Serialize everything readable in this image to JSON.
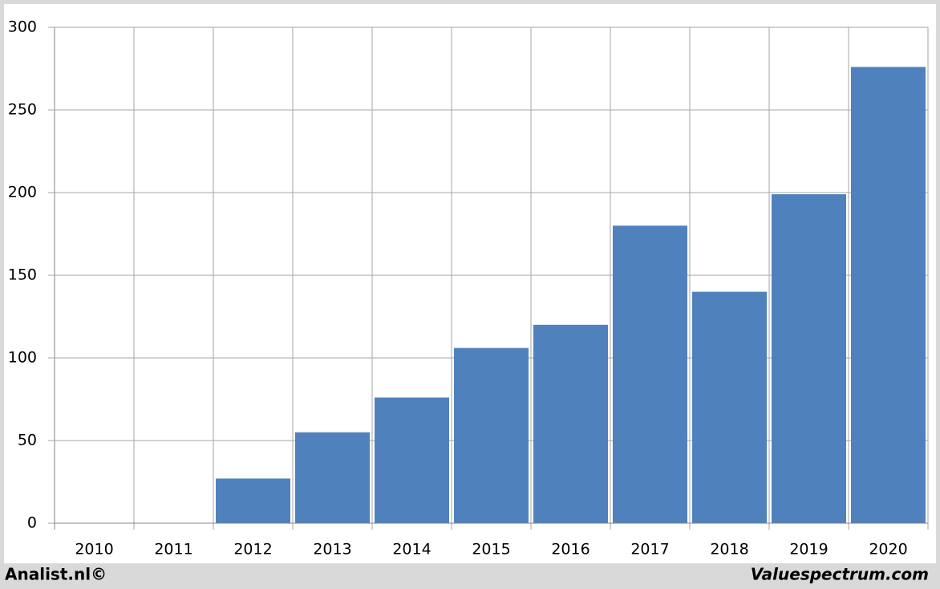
{
  "chart_data": {
    "type": "bar",
    "categories": [
      "2010",
      "2011",
      "2012",
      "2013",
      "2014",
      "2015",
      "2016",
      "2017",
      "2018",
      "2019",
      "2020"
    ],
    "values": [
      null,
      null,
      27,
      55,
      76,
      106,
      120,
      180,
      140,
      199,
      276
    ],
    "color": "#4f81bd",
    "ylim": [
      0,
      300
    ],
    "yticks": [
      0,
      50,
      100,
      150,
      200,
      250,
      300
    ],
    "grid": true,
    "footer_left": "Analist.nl©",
    "footer_right": "Valuespectrum.com"
  }
}
